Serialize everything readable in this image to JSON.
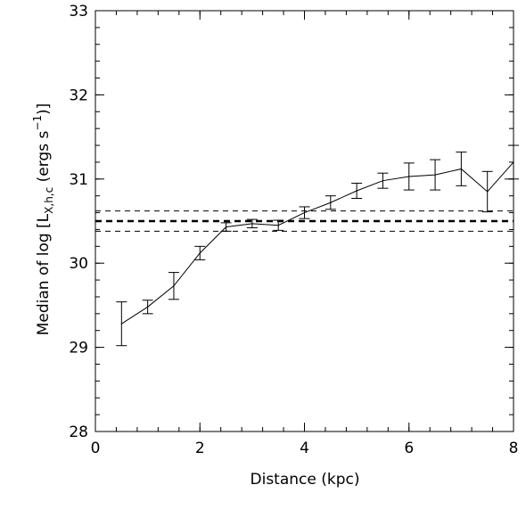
{
  "chart_data": {
    "type": "line",
    "xlabel": "Distance (kpc)",
    "ylabel": {
      "prefix": "Median of log [L",
      "subscript": "X,h,c",
      "middle": " (ergs s",
      "superscript": "−1",
      "suffix": ")]"
    },
    "xlim": [
      0,
      8
    ],
    "ylim": [
      28,
      33
    ],
    "xticks": [
      0,
      2,
      4,
      6,
      8
    ],
    "xtick_labels": [
      "0",
      "2",
      "4",
      "6",
      "8"
    ],
    "yticks": [
      28,
      29,
      30,
      31,
      32,
      33
    ],
    "ytick_labels": [
      "28",
      "29",
      "30",
      "31",
      "32",
      "33"
    ],
    "grid": false,
    "series": [
      {
        "x": [
          0.5,
          1.0,
          1.5,
          2.0,
          2.5,
          3.0,
          3.5,
          4.0,
          4.5,
          5.0,
          5.5,
          6.0,
          6.5,
          7.0,
          7.5,
          8.0
        ],
        "y": [
          29.28,
          29.48,
          29.73,
          30.12,
          30.43,
          30.47,
          30.45,
          30.6,
          30.72,
          30.86,
          30.98,
          31.03,
          31.05,
          31.12,
          30.85,
          31.2
        ],
        "yerr_low": [
          0.26,
          0.08,
          0.16,
          0.08,
          0.05,
          0.05,
          0.06,
          0.07,
          0.08,
          0.09,
          0.09,
          0.16,
          0.18,
          0.2,
          0.24,
          0.2
        ],
        "yerr_high": [
          0.26,
          0.08,
          0.16,
          0.08,
          0.05,
          0.05,
          0.06,
          0.07,
          0.08,
          0.09,
          0.09,
          0.16,
          0.18,
          0.2,
          0.24,
          0.2
        ]
      }
    ],
    "reference_lines": [
      {
        "y": 30.5,
        "style": "thick-dashed"
      },
      {
        "y": 30.62,
        "style": "dashed"
      },
      {
        "y": 30.38,
        "style": "dashed"
      }
    ],
    "colors": {
      "line": "#000000",
      "background": "#ffffff"
    }
  }
}
